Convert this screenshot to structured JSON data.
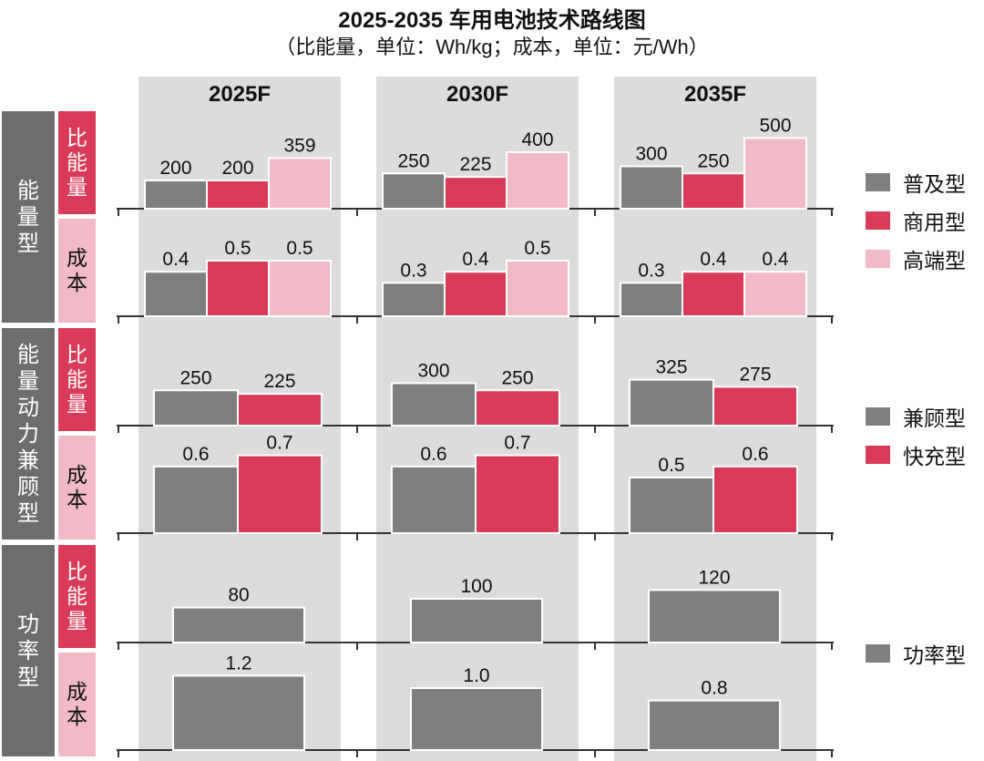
{
  "title": "2025-2035 车用电池技术路线图",
  "subtitle": "（比能量，单位：Wh/kg；成本，单位：元/Wh）",
  "colors": {
    "普及型": "#7f7f7f",
    "商用型": "#d93a57",
    "高端型": "#f2bac6",
    "兼顾型": "#7f7f7f",
    "快充型": "#d93a57",
    "功率型": "#7f7f7f",
    "column_bg": "#dcdcdc",
    "group_bg": "#6d6d6d"
  },
  "groups": [
    {
      "label": "能量型",
      "metrics": [
        "比能量",
        "成本"
      ]
    },
    {
      "label": "能量动力兼顾型",
      "metrics": [
        "比能量",
        "成本"
      ]
    },
    {
      "label": "功率型",
      "metrics": [
        "比能量",
        "成本"
      ]
    }
  ],
  "legends": [
    [
      "普及型",
      "商用型",
      "高端型"
    ],
    [
      "兼顾型",
      "快充型"
    ],
    [
      "功率型"
    ]
  ],
  "chart_data": {
    "type": "bar",
    "categories": [
      "2025F",
      "2030F",
      "2035F"
    ],
    "panels": [
      {
        "group": "能量型",
        "metric": "比能量",
        "unit": "Wh/kg",
        "series": [
          {
            "name": "普及型",
            "values": [
              200,
              250,
              300
            ],
            "labels": [
              "200",
              "250",
              "300"
            ]
          },
          {
            "name": "商用型",
            "values": [
              200,
              225,
              250
            ],
            "labels": [
              "200",
              "225",
              "250"
            ]
          },
          {
            "name": "高端型",
            "values": [
              359,
              400,
              500
            ],
            "labels": [
              "359",
              "400",
              "500"
            ]
          }
        ]
      },
      {
        "group": "能量型",
        "metric": "成本",
        "unit": "元/Wh",
        "series": [
          {
            "name": "普及型",
            "values": [
              0.4,
              0.3,
              0.3
            ],
            "labels": [
              "0.4",
              "0.3",
              "0.3"
            ]
          },
          {
            "name": "商用型",
            "values": [
              0.5,
              0.4,
              0.4
            ],
            "labels": [
              "0.5",
              "0.4",
              "0.4"
            ]
          },
          {
            "name": "高端型",
            "values": [
              0.5,
              0.5,
              0.4
            ],
            "labels": [
              "0.5",
              "0.5",
              "0.4"
            ]
          }
        ]
      },
      {
        "group": "能量动力兼顾型",
        "metric": "比能量",
        "unit": "Wh/kg",
        "series": [
          {
            "name": "兼顾型",
            "values": [
              250,
              300,
              325
            ],
            "labels": [
              "250",
              "300",
              "325"
            ]
          },
          {
            "name": "快充型",
            "values": [
              225,
              250,
              275
            ],
            "labels": [
              "225",
              "250",
              "275"
            ]
          }
        ]
      },
      {
        "group": "能量动力兼顾型",
        "metric": "成本",
        "unit": "元/Wh",
        "series": [
          {
            "name": "兼顾型",
            "values": [
              0.6,
              0.6,
              0.5
            ],
            "labels": [
              "0.6",
              "0.6",
              "0.5"
            ]
          },
          {
            "name": "快充型",
            "values": [
              0.7,
              0.7,
              0.6
            ],
            "labels": [
              "0.7",
              "0.7",
              "0.6"
            ]
          }
        ]
      },
      {
        "group": "功率型",
        "metric": "比能量",
        "unit": "Wh/kg",
        "series": [
          {
            "name": "功率型",
            "values": [
              80,
              100,
              120
            ],
            "labels": [
              "80",
              "100",
              "120"
            ]
          }
        ]
      },
      {
        "group": "功率型",
        "metric": "成本",
        "unit": "元/Wh",
        "series": [
          {
            "name": "功率型",
            "values": [
              1.2,
              1.0,
              0.8
            ],
            "labels": [
              "1.2",
              "1.0",
              "0.8"
            ]
          }
        ]
      }
    ]
  }
}
